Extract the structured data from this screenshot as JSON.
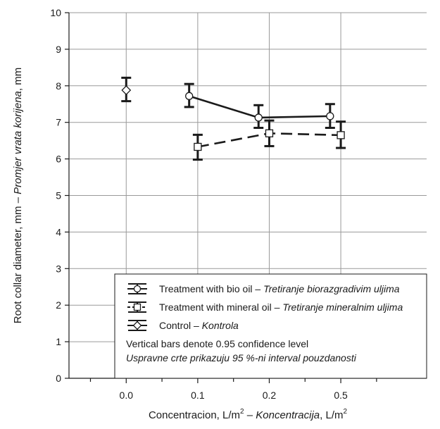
{
  "chart_data": {
    "type": "line",
    "categories": [
      "0.0",
      "0.1",
      "0.2",
      "0.5"
    ],
    "xlabel": {
      "en": "Concentracion, L/m",
      "en_sup": "2",
      "sep": " – ",
      "hr": "Koncentracija",
      "hr_suffix": ", L/m",
      "hr_sup": "2"
    },
    "ylabel": {
      "en": "Root collar diameter, mm – ",
      "hr": "Promjer vrata korijena",
      "suffix": ", mm"
    },
    "ylim": [
      0,
      10
    ],
    "yticks": [
      "0",
      "1",
      "2",
      "3",
      "4",
      "5",
      "6",
      "7",
      "8",
      "9",
      "10"
    ],
    "grid": true,
    "series": [
      {
        "name": "Treatment with bio oil – ",
        "name_hr": "Tretiranje biorazgradivim uljima",
        "marker": "circle",
        "line": "solid",
        "points": [
          {
            "category": "0.1",
            "offset": -0.12,
            "mean": 7.72,
            "low": 7.42,
            "high": 8.05
          },
          {
            "category": "0.2",
            "offset": -0.15,
            "mean": 7.13,
            "low": 6.85,
            "high": 7.47
          },
          {
            "category": "0.5",
            "offset": -0.15,
            "mean": 7.17,
            "low": 6.85,
            "high": 7.5
          }
        ]
      },
      {
        "name": "Treatment with mineral oil – ",
        "name_hr": "Tretiranje mineralnim uljima",
        "marker": "square",
        "line": "dashed",
        "points": [
          {
            "category": "0.1",
            "offset": 0.0,
            "mean": 6.33,
            "low": 5.98,
            "high": 6.66
          },
          {
            "category": "0.2",
            "offset": 0.0,
            "mean": 6.7,
            "low": 6.35,
            "high": 7.05
          },
          {
            "category": "0.5",
            "offset": 0.0,
            "mean": 6.65,
            "low": 6.3,
            "high": 7.02
          }
        ]
      },
      {
        "name": "Control – ",
        "name_hr": "Kontrola",
        "marker": "diamond",
        "line": "none",
        "points": [
          {
            "category": "0.0",
            "offset": 0.0,
            "mean": 7.88,
            "low": 7.58,
            "high": 8.22
          }
        ]
      }
    ],
    "legend_position": "bottom-right",
    "notes": [
      "Vertical bars denote  0.95 confidence level",
      "Uspravne crte prikazuju  95 %-ni interval pouzdanosti"
    ]
  }
}
